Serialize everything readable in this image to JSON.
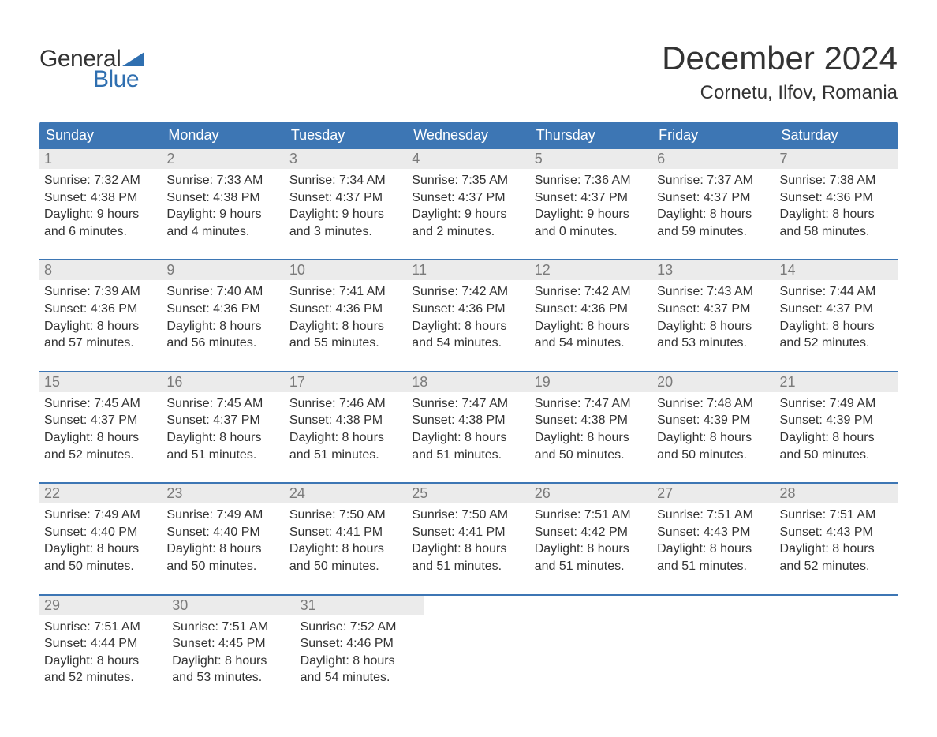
{
  "logo": {
    "text1": "General",
    "text2": "Blue",
    "shape_color": "#2f6fb0"
  },
  "title": "December 2024",
  "location": "Cornetu, Ilfov, Romania",
  "colors": {
    "header_bg": "#3d76b4",
    "daynum_bg": "#ebebeb",
    "week_border": "#3d76b4",
    "text": "#333333",
    "daynum_text": "#7a7a7a",
    "logo_blue": "#2f6fb0"
  },
  "weekdays": [
    "Sunday",
    "Monday",
    "Tuesday",
    "Wednesday",
    "Thursday",
    "Friday",
    "Saturday"
  ],
  "weeks": [
    [
      {
        "n": "1",
        "sunrise": "Sunrise: 7:32 AM",
        "sunset": "Sunset: 4:38 PM",
        "d1": "Daylight: 9 hours",
        "d2": "and 6 minutes."
      },
      {
        "n": "2",
        "sunrise": "Sunrise: 7:33 AM",
        "sunset": "Sunset: 4:38 PM",
        "d1": "Daylight: 9 hours",
        "d2": "and 4 minutes."
      },
      {
        "n": "3",
        "sunrise": "Sunrise: 7:34 AM",
        "sunset": "Sunset: 4:37 PM",
        "d1": "Daylight: 9 hours",
        "d2": "and 3 minutes."
      },
      {
        "n": "4",
        "sunrise": "Sunrise: 7:35 AM",
        "sunset": "Sunset: 4:37 PM",
        "d1": "Daylight: 9 hours",
        "d2": "and 2 minutes."
      },
      {
        "n": "5",
        "sunrise": "Sunrise: 7:36 AM",
        "sunset": "Sunset: 4:37 PM",
        "d1": "Daylight: 9 hours",
        "d2": "and 0 minutes."
      },
      {
        "n": "6",
        "sunrise": "Sunrise: 7:37 AM",
        "sunset": "Sunset: 4:37 PM",
        "d1": "Daylight: 8 hours",
        "d2": "and 59 minutes."
      },
      {
        "n": "7",
        "sunrise": "Sunrise: 7:38 AM",
        "sunset": "Sunset: 4:36 PM",
        "d1": "Daylight: 8 hours",
        "d2": "and 58 minutes."
      }
    ],
    [
      {
        "n": "8",
        "sunrise": "Sunrise: 7:39 AM",
        "sunset": "Sunset: 4:36 PM",
        "d1": "Daylight: 8 hours",
        "d2": "and 57 minutes."
      },
      {
        "n": "9",
        "sunrise": "Sunrise: 7:40 AM",
        "sunset": "Sunset: 4:36 PM",
        "d1": "Daylight: 8 hours",
        "d2": "and 56 minutes."
      },
      {
        "n": "10",
        "sunrise": "Sunrise: 7:41 AM",
        "sunset": "Sunset: 4:36 PM",
        "d1": "Daylight: 8 hours",
        "d2": "and 55 minutes."
      },
      {
        "n": "11",
        "sunrise": "Sunrise: 7:42 AM",
        "sunset": "Sunset: 4:36 PM",
        "d1": "Daylight: 8 hours",
        "d2": "and 54 minutes."
      },
      {
        "n": "12",
        "sunrise": "Sunrise: 7:42 AM",
        "sunset": "Sunset: 4:36 PM",
        "d1": "Daylight: 8 hours",
        "d2": "and 54 minutes."
      },
      {
        "n": "13",
        "sunrise": "Sunrise: 7:43 AM",
        "sunset": "Sunset: 4:37 PM",
        "d1": "Daylight: 8 hours",
        "d2": "and 53 minutes."
      },
      {
        "n": "14",
        "sunrise": "Sunrise: 7:44 AM",
        "sunset": "Sunset: 4:37 PM",
        "d1": "Daylight: 8 hours",
        "d2": "and 52 minutes."
      }
    ],
    [
      {
        "n": "15",
        "sunrise": "Sunrise: 7:45 AM",
        "sunset": "Sunset: 4:37 PM",
        "d1": "Daylight: 8 hours",
        "d2": "and 52 minutes."
      },
      {
        "n": "16",
        "sunrise": "Sunrise: 7:45 AM",
        "sunset": "Sunset: 4:37 PM",
        "d1": "Daylight: 8 hours",
        "d2": "and 51 minutes."
      },
      {
        "n": "17",
        "sunrise": "Sunrise: 7:46 AM",
        "sunset": "Sunset: 4:38 PM",
        "d1": "Daylight: 8 hours",
        "d2": "and 51 minutes."
      },
      {
        "n": "18",
        "sunrise": "Sunrise: 7:47 AM",
        "sunset": "Sunset: 4:38 PM",
        "d1": "Daylight: 8 hours",
        "d2": "and 51 minutes."
      },
      {
        "n": "19",
        "sunrise": "Sunrise: 7:47 AM",
        "sunset": "Sunset: 4:38 PM",
        "d1": "Daylight: 8 hours",
        "d2": "and 50 minutes."
      },
      {
        "n": "20",
        "sunrise": "Sunrise: 7:48 AM",
        "sunset": "Sunset: 4:39 PM",
        "d1": "Daylight: 8 hours",
        "d2": "and 50 minutes."
      },
      {
        "n": "21",
        "sunrise": "Sunrise: 7:49 AM",
        "sunset": "Sunset: 4:39 PM",
        "d1": "Daylight: 8 hours",
        "d2": "and 50 minutes."
      }
    ],
    [
      {
        "n": "22",
        "sunrise": "Sunrise: 7:49 AM",
        "sunset": "Sunset: 4:40 PM",
        "d1": "Daylight: 8 hours",
        "d2": "and 50 minutes."
      },
      {
        "n": "23",
        "sunrise": "Sunrise: 7:49 AM",
        "sunset": "Sunset: 4:40 PM",
        "d1": "Daylight: 8 hours",
        "d2": "and 50 minutes."
      },
      {
        "n": "24",
        "sunrise": "Sunrise: 7:50 AM",
        "sunset": "Sunset: 4:41 PM",
        "d1": "Daylight: 8 hours",
        "d2": "and 50 minutes."
      },
      {
        "n": "25",
        "sunrise": "Sunrise: 7:50 AM",
        "sunset": "Sunset: 4:41 PM",
        "d1": "Daylight: 8 hours",
        "d2": "and 51 minutes."
      },
      {
        "n": "26",
        "sunrise": "Sunrise: 7:51 AM",
        "sunset": "Sunset: 4:42 PM",
        "d1": "Daylight: 8 hours",
        "d2": "and 51 minutes."
      },
      {
        "n": "27",
        "sunrise": "Sunrise: 7:51 AM",
        "sunset": "Sunset: 4:43 PM",
        "d1": "Daylight: 8 hours",
        "d2": "and 51 minutes."
      },
      {
        "n": "28",
        "sunrise": "Sunrise: 7:51 AM",
        "sunset": "Sunset: 4:43 PM",
        "d1": "Daylight: 8 hours",
        "d2": "and 52 minutes."
      }
    ],
    [
      {
        "n": "29",
        "sunrise": "Sunrise: 7:51 AM",
        "sunset": "Sunset: 4:44 PM",
        "d1": "Daylight: 8 hours",
        "d2": "and 52 minutes."
      },
      {
        "n": "30",
        "sunrise": "Sunrise: 7:51 AM",
        "sunset": "Sunset: 4:45 PM",
        "d1": "Daylight: 8 hours",
        "d2": "and 53 minutes."
      },
      {
        "n": "31",
        "sunrise": "Sunrise: 7:52 AM",
        "sunset": "Sunset: 4:46 PM",
        "d1": "Daylight: 8 hours",
        "d2": "and 54 minutes."
      },
      null,
      null,
      null,
      null
    ]
  ]
}
